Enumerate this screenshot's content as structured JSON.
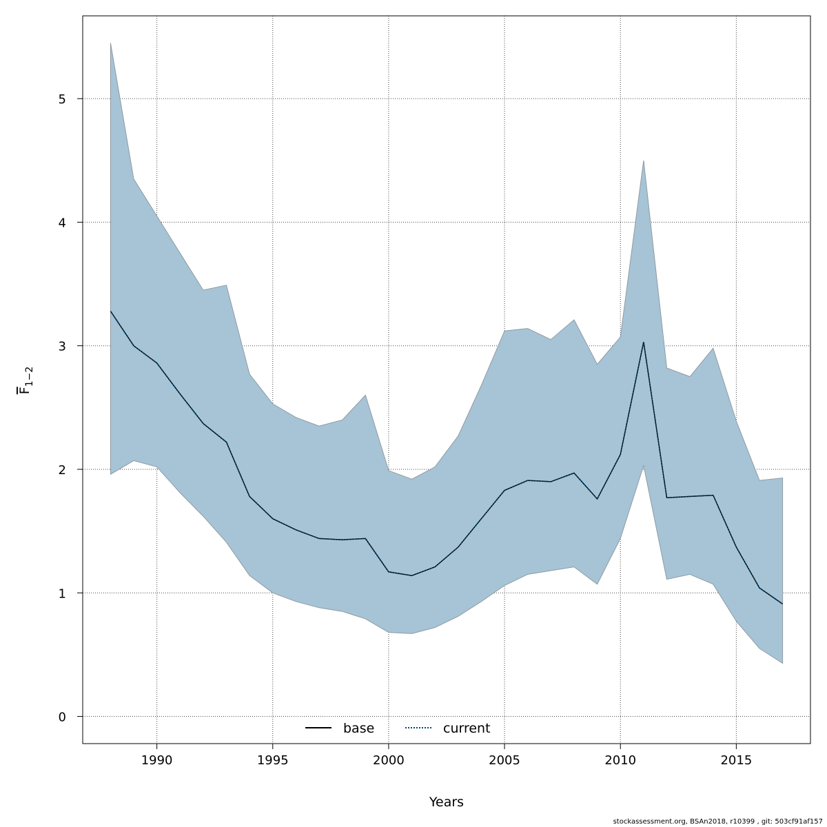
{
  "chart_data": {
    "type": "line",
    "xlabel": "Years",
    "ylabel_main": "F",
    "ylabel_sub": "1−2",
    "xlim": [
      1986.8,
      2018.2
    ],
    "ylim": [
      -0.22,
      5.67
    ],
    "x_ticks": [
      1990,
      1995,
      2000,
      2005,
      2010,
      2015
    ],
    "y_ticks": [
      0,
      1,
      2,
      3,
      4,
      5
    ],
    "grid": true,
    "x": [
      1988,
      1989,
      1990,
      1991,
      1992,
      1993,
      1994,
      1995,
      1996,
      1997,
      1998,
      1999,
      2000,
      2001,
      2002,
      2003,
      2004,
      2005,
      2006,
      2007,
      2008,
      2009,
      2010,
      2011,
      2012,
      2013,
      2014,
      2015,
      2016,
      2017
    ],
    "series": [
      {
        "name": "current",
        "line_style": "dotted",
        "color": "#00456b",
        "values": [
          3.28,
          3.0,
          2.86,
          2.61,
          2.37,
          2.22,
          1.78,
          1.6,
          1.51,
          1.44,
          1.43,
          1.44,
          1.17,
          1.14,
          1.21,
          1.37,
          1.6,
          1.83,
          1.91,
          1.9,
          1.97,
          1.76,
          2.12,
          3.03,
          1.77,
          1.78,
          1.79,
          1.37,
          1.04,
          0.91
        ]
      }
    ],
    "band": {
      "color": "#a6c4d6",
      "edge_color": "#8f9aa2",
      "upper": [
        5.45,
        4.35,
        4.05,
        3.75,
        3.45,
        3.49,
        2.77,
        2.53,
        2.42,
        2.35,
        2.4,
        2.6,
        1.99,
        1.92,
        2.02,
        2.27,
        2.68,
        3.12,
        3.14,
        3.05,
        3.21,
        2.85,
        3.07,
        4.5,
        2.82,
        2.75,
        2.98,
        2.39,
        1.91,
        1.93
      ],
      "lower": [
        1.96,
        2.07,
        2.02,
        1.81,
        1.62,
        1.41,
        1.14,
        1.0,
        0.93,
        0.88,
        0.85,
        0.79,
        0.68,
        0.67,
        0.72,
        0.81,
        0.93,
        1.06,
        1.15,
        1.18,
        1.21,
        1.07,
        1.44,
        2.03,
        1.11,
        1.15,
        1.07,
        0.77,
        0.55,
        0.43
      ]
    },
    "legend": {
      "placement": "bottom-center",
      "entries": [
        {
          "label": "base",
          "line_style": "solid",
          "color": "#000000"
        },
        {
          "label": "current",
          "line_style": "dotted",
          "color": "#00456b"
        }
      ]
    }
  },
  "footer": "stockassessment.org, BSAn2018, r10399 , git: 503cf91af157"
}
